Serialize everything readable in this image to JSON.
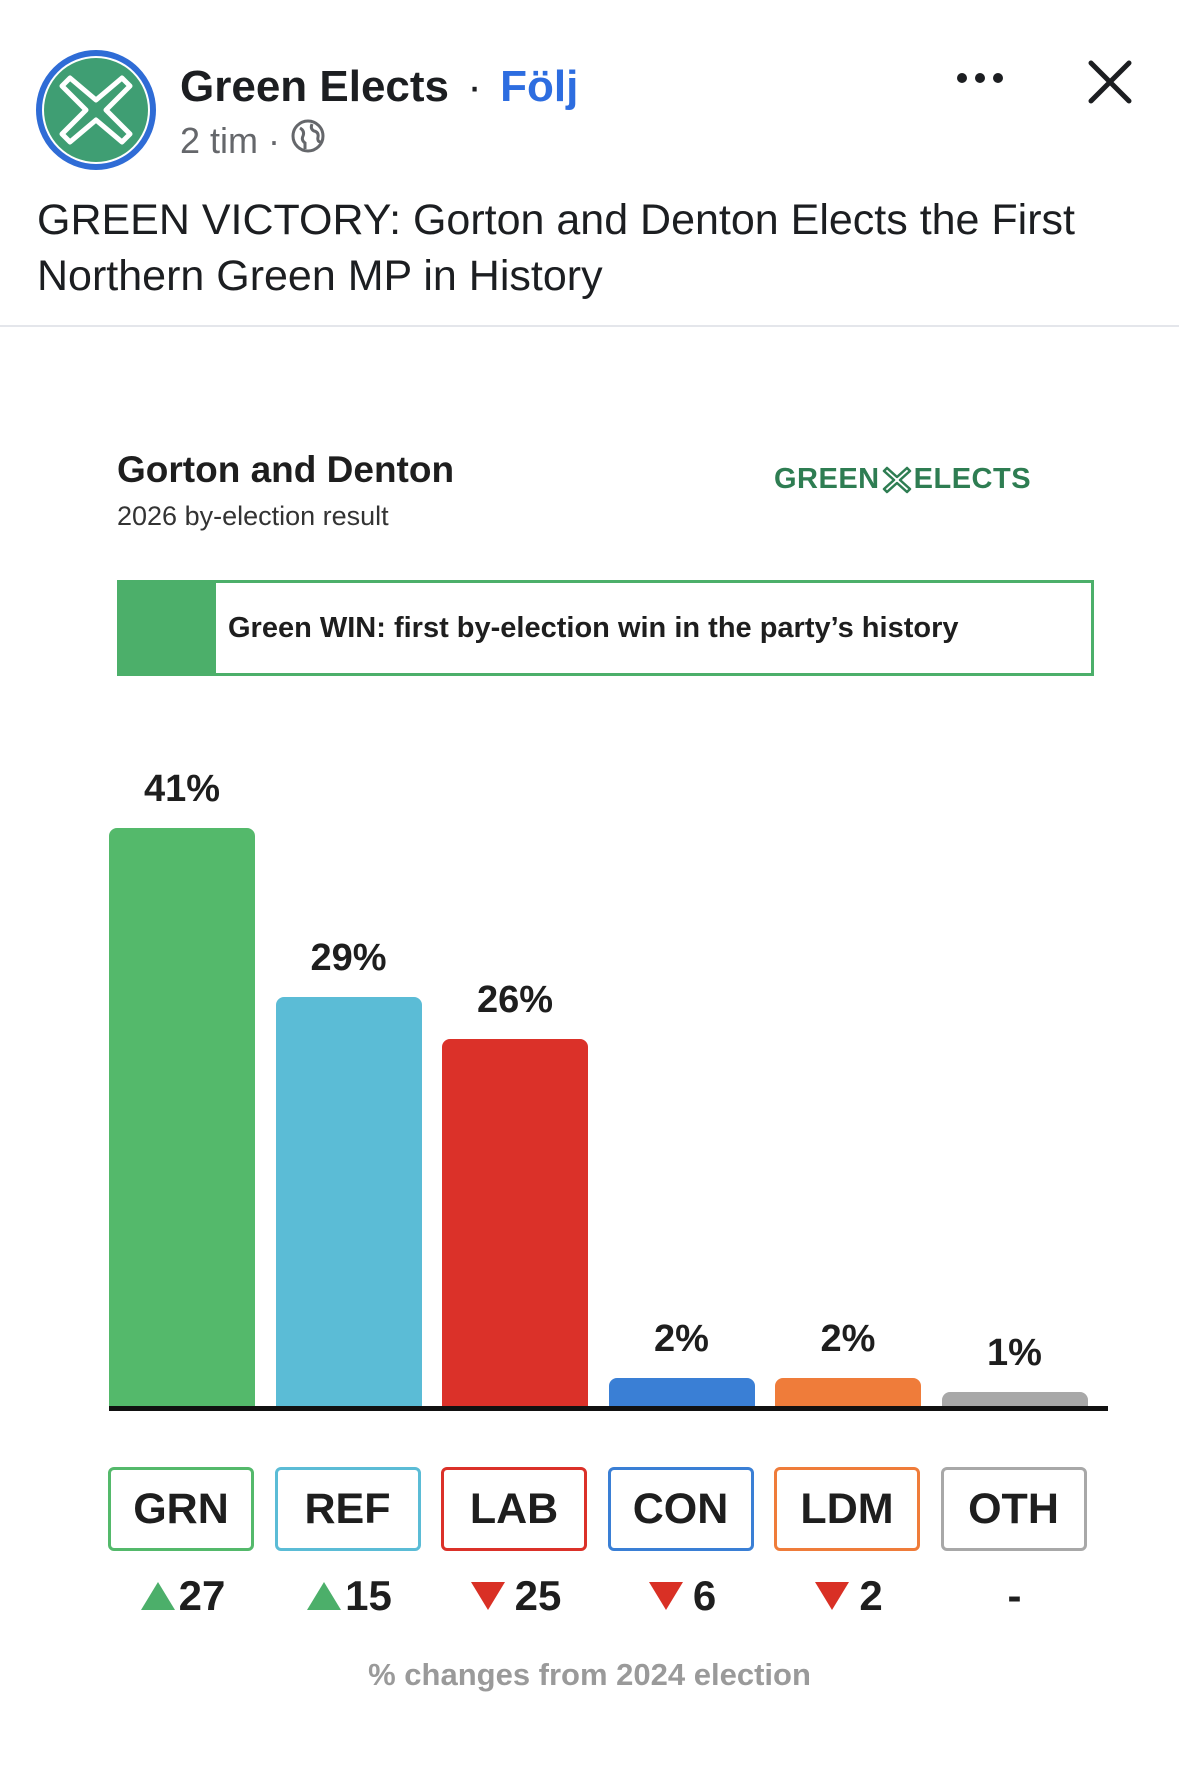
{
  "post": {
    "author": "Green Elects",
    "separator": "·",
    "follow_label": "Följ",
    "time": "2 tim",
    "meta_separator": "·",
    "text": "GREEN VICTORY: Gorton and Denton Elects the First Northern Green MP in History",
    "icons": {
      "avatar": "green-x-logo",
      "audience": "globe-icon",
      "more": "more-dots-icon",
      "close": "close-icon"
    }
  },
  "graphic": {
    "title": "Gorton and Denton",
    "subtitle": "2026 by-election result",
    "brand_left": "GREEN",
    "brand_right": "ELECTS",
    "banner": "Green WIN: first by-election win in the party’s history",
    "footnote": "% changes from 2024 election"
  },
  "chart_data": {
    "type": "bar",
    "categories": [
      "GRN",
      "REF",
      "LAB",
      "CON",
      "LDM",
      "OTH"
    ],
    "values": [
      41,
      29,
      26,
      2,
      2,
      1
    ],
    "labels": [
      "41%",
      "29%",
      "26%",
      "2%",
      "2%",
      "1%"
    ],
    "changes": [
      "27",
      "15",
      "25",
      "6",
      "2",
      "-"
    ],
    "change_direction": [
      "up",
      "up",
      "down",
      "down",
      "down",
      "none"
    ],
    "colors": [
      "#54b96b",
      "#5bbcd6",
      "#db3129",
      "#3a7fd5",
      "#ef7c3a",
      "#a8a8a8"
    ],
    "ylim": [
      0,
      41
    ],
    "title": "Gorton and Denton",
    "subtitle": "2026 by-election result",
    "xlabel": "",
    "ylabel": ""
  },
  "colors": {
    "up": "#4caf6a",
    "down": "#d93025",
    "link": "#2d6de0",
    "avatar_ring": "#2f6cd6"
  }
}
